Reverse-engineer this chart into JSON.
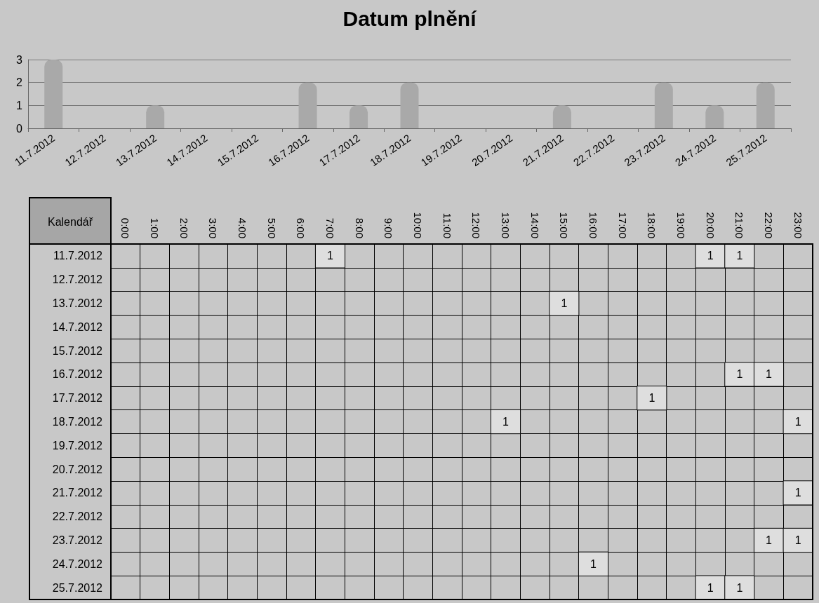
{
  "chart_data": [
    {
      "type": "bar",
      "title": "Datum plnění",
      "categories": [
        "11.7.2012",
        "12.7.2012",
        "13.7.2012",
        "14.7.2012",
        "15.7.2012",
        "16.7.2012",
        "17.7.2012",
        "18.7.2012",
        "19.7.2012",
        "20.7.2012",
        "21.7.2012",
        "22.7.2012",
        "23.7.2012",
        "24.7.2012",
        "25.7.2012"
      ],
      "values": [
        3,
        0,
        1,
        0,
        0,
        2,
        1,
        2,
        0,
        0,
        1,
        0,
        2,
        1,
        2
      ],
      "color": "#a9a9a9",
      "ylim": [
        0,
        3
      ],
      "yticks": [
        0,
        1,
        2,
        3
      ],
      "grid": "y"
    },
    {
      "type": "heatmap",
      "ylabel": "Kalendář",
      "categories": [
        "0:00",
        "1:00",
        "2:00",
        "3:00",
        "4:00",
        "5:00",
        "6:00",
        "7:00",
        "8:00",
        "9:00",
        "10:00",
        "11:00",
        "12:00",
        "13:00",
        "14:00",
        "15:00",
        "16:00",
        "17:00",
        "18:00",
        "19:00",
        "20:00",
        "21:00",
        "22:00",
        "23:00"
      ],
      "y_categories": [
        "11.7.2012",
        "12.7.2012",
        "13.7.2012",
        "14.7.2012",
        "15.7.2012",
        "16.7.2012",
        "17.7.2012",
        "18.7.2012",
        "19.7.2012",
        "20.7.2012",
        "21.7.2012",
        "22.7.2012",
        "23.7.2012",
        "24.7.2012",
        "25.7.2012"
      ],
      "cells": [
        [
          null,
          null,
          null,
          null,
          null,
          null,
          null,
          1,
          null,
          null,
          null,
          null,
          null,
          null,
          null,
          null,
          null,
          null,
          null,
          null,
          1,
          1,
          null,
          null
        ],
        [
          null,
          null,
          null,
          null,
          null,
          null,
          null,
          null,
          null,
          null,
          null,
          null,
          null,
          null,
          null,
          null,
          null,
          null,
          null,
          null,
          null,
          null,
          null,
          null
        ],
        [
          null,
          null,
          null,
          null,
          null,
          null,
          null,
          null,
          null,
          null,
          null,
          null,
          null,
          null,
          null,
          1,
          null,
          null,
          null,
          null,
          null,
          null,
          null,
          null
        ],
        [
          null,
          null,
          null,
          null,
          null,
          null,
          null,
          null,
          null,
          null,
          null,
          null,
          null,
          null,
          null,
          null,
          null,
          null,
          null,
          null,
          null,
          null,
          null,
          null
        ],
        [
          null,
          null,
          null,
          null,
          null,
          null,
          null,
          null,
          null,
          null,
          null,
          null,
          null,
          null,
          null,
          null,
          null,
          null,
          null,
          null,
          null,
          null,
          null,
          null
        ],
        [
          null,
          null,
          null,
          null,
          null,
          null,
          null,
          null,
          null,
          null,
          null,
          null,
          null,
          null,
          null,
          null,
          null,
          null,
          null,
          null,
          null,
          1,
          1,
          null
        ],
        [
          null,
          null,
          null,
          null,
          null,
          null,
          null,
          null,
          null,
          null,
          null,
          null,
          null,
          null,
          null,
          null,
          null,
          null,
          1,
          null,
          null,
          null,
          null,
          null
        ],
        [
          null,
          null,
          null,
          null,
          null,
          null,
          null,
          null,
          null,
          null,
          null,
          null,
          null,
          1,
          null,
          null,
          null,
          null,
          null,
          null,
          null,
          null,
          null,
          1
        ],
        [
          null,
          null,
          null,
          null,
          null,
          null,
          null,
          null,
          null,
          null,
          null,
          null,
          null,
          null,
          null,
          null,
          null,
          null,
          null,
          null,
          null,
          null,
          null,
          null
        ],
        [
          null,
          null,
          null,
          null,
          null,
          null,
          null,
          null,
          null,
          null,
          null,
          null,
          null,
          null,
          null,
          null,
          null,
          null,
          null,
          null,
          null,
          null,
          null,
          null
        ],
        [
          null,
          null,
          null,
          null,
          null,
          null,
          null,
          null,
          null,
          null,
          null,
          null,
          null,
          null,
          null,
          null,
          null,
          null,
          null,
          null,
          null,
          null,
          null,
          1
        ],
        [
          null,
          null,
          null,
          null,
          null,
          null,
          null,
          null,
          null,
          null,
          null,
          null,
          null,
          null,
          null,
          null,
          null,
          null,
          null,
          null,
          null,
          null,
          null,
          null
        ],
        [
          null,
          null,
          null,
          null,
          null,
          null,
          null,
          null,
          null,
          null,
          null,
          null,
          null,
          null,
          null,
          null,
          null,
          null,
          null,
          null,
          null,
          null,
          1,
          1
        ],
        [
          null,
          null,
          null,
          null,
          null,
          null,
          null,
          null,
          null,
          null,
          null,
          null,
          null,
          null,
          null,
          null,
          1,
          null,
          null,
          null,
          null,
          null,
          null,
          null
        ],
        [
          null,
          null,
          null,
          null,
          null,
          null,
          null,
          null,
          null,
          null,
          null,
          null,
          null,
          null,
          null,
          null,
          null,
          null,
          null,
          null,
          1,
          1,
          null,
          null
        ]
      ],
      "data_labels": true
    }
  ]
}
